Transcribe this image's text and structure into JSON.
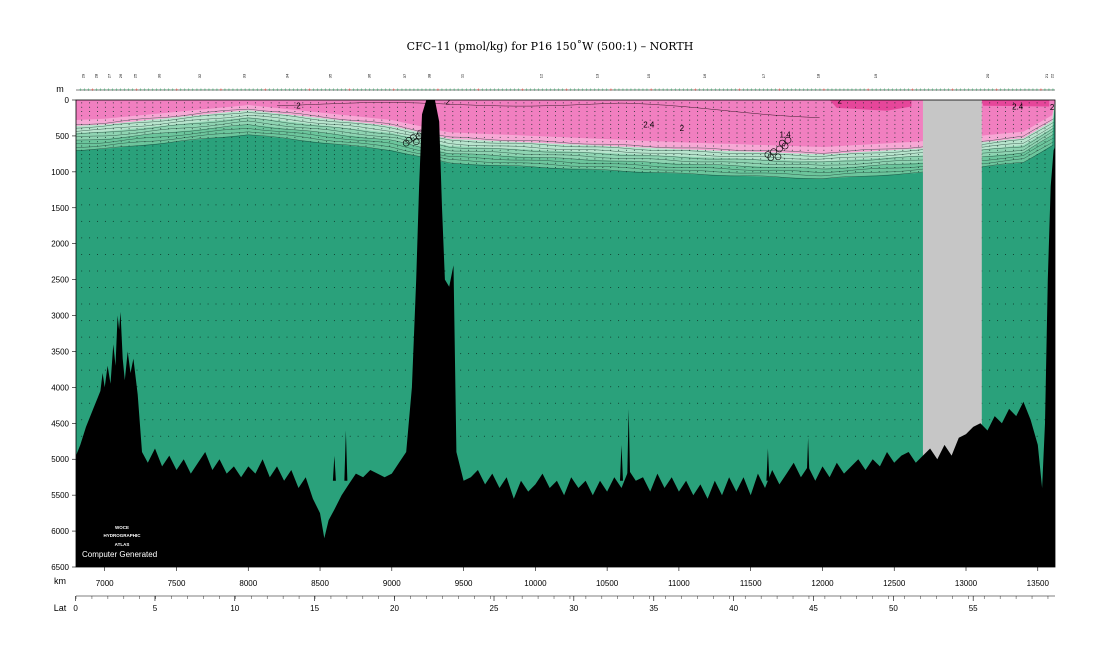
{
  "chart_data": {
    "type": "heatmap",
    "title": "CFC–11 (pmol/kg) for P16 150˚W (500:1) – NORTH",
    "depth_unit": "m",
    "distance_unit": "km",
    "lat_unit": "Lat",
    "x_range_km": [
      6800,
      13620
    ],
    "y_range_m": [
      0,
      6500
    ],
    "x_ticks": [
      7000,
      7500,
      8000,
      8500,
      9000,
      9500,
      10000,
      10500,
      11000,
      11500,
      12000,
      12500,
      13000,
      13500
    ],
    "y_ticks": [
      0,
      500,
      1000,
      1500,
      2000,
      2500,
      3000,
      3500,
      4000,
      4500,
      5000,
      5500,
      6000,
      6500
    ],
    "lat_ticks": [
      {
        "lat": 0,
        "km": 6797
      },
      {
        "lat": 5,
        "km": 7350
      },
      {
        "lat": 10,
        "km": 7906
      },
      {
        "lat": 15,
        "km": 8462
      },
      {
        "lat": 20,
        "km": 9019
      },
      {
        "lat": 25,
        "km": 9712
      },
      {
        "lat": 30,
        "km": 10268
      },
      {
        "lat": 35,
        "km": 10825
      },
      {
        "lat": 40,
        "km": 11381
      },
      {
        "lat": 45,
        "km": 11937
      },
      {
        "lat": 50,
        "km": 12494
      },
      {
        "lat": 55,
        "km": 13050
      }
    ],
    "contour_labels": [
      {
        "text": "2",
        "km": 8350,
        "depth": 120
      },
      {
        "text": "2",
        "km": 9390,
        "depth": 60
      },
      {
        "text": "2.4",
        "km": 10790,
        "depth": 380
      },
      {
        "text": "2",
        "km": 11020,
        "depth": 430
      },
      {
        "text": "1.4",
        "km": 11740,
        "depth": 520
      },
      {
        "text": "2",
        "km": 12120,
        "depth": 50
      },
      {
        "text": "2.4",
        "km": 13360,
        "depth": 130
      },
      {
        "text": "2",
        "km": 13600,
        "depth": 140
      }
    ],
    "station_labels": [
      {
        "text": "29",
        "km": 6860
      },
      {
        "text": "28",
        "km": 6950
      },
      {
        "text": "27",
        "km": 7040
      },
      {
        "text": "26",
        "km": 7120
      },
      {
        "text": "25",
        "km": 7220
      },
      {
        "text": "30",
        "km": 7390
      },
      {
        "text": "32",
        "km": 7670
      },
      {
        "text": "33",
        "km": 7980
      },
      {
        "text": "34",
        "km": 8280
      },
      {
        "text": "35",
        "km": 8580
      },
      {
        "text": "36",
        "km": 8850
      },
      {
        "text": "37",
        "km": 9100
      },
      {
        "text": "38",
        "km": 9270
      },
      {
        "text": "11",
        "km": 9500
      },
      {
        "text": "12",
        "km": 10050
      },
      {
        "text": "13",
        "km": 10440
      },
      {
        "text": "15",
        "km": 10800
      },
      {
        "text": "16",
        "km": 11190
      },
      {
        "text": "17",
        "km": 11600
      },
      {
        "text": "18",
        "km": 11980
      },
      {
        "text": "19",
        "km": 12380
      },
      {
        "text": "20",
        "km": 13160
      },
      {
        "text": "21",
        "km": 13570
      },
      {
        "text": "22",
        "km": 13610
      }
    ],
    "gap_region_km": [
      12700,
      13110
    ],
    "colors": {
      "background": "#2aa17b",
      "surface_pink": "#f17fc0",
      "surface_hotpink": "#e6469a",
      "light_pink": "#f7a8d5",
      "pale_green": "#b8e4cd",
      "mid_green": "#6cc59c",
      "bathymetry": "#000000",
      "gap": "#c6c6c6"
    }
  },
  "logo": {
    "line1": "WOCE",
    "line2": "HYDROGRAPHIC",
    "line3": "ATLAS",
    "caption": "Computer Generated"
  }
}
